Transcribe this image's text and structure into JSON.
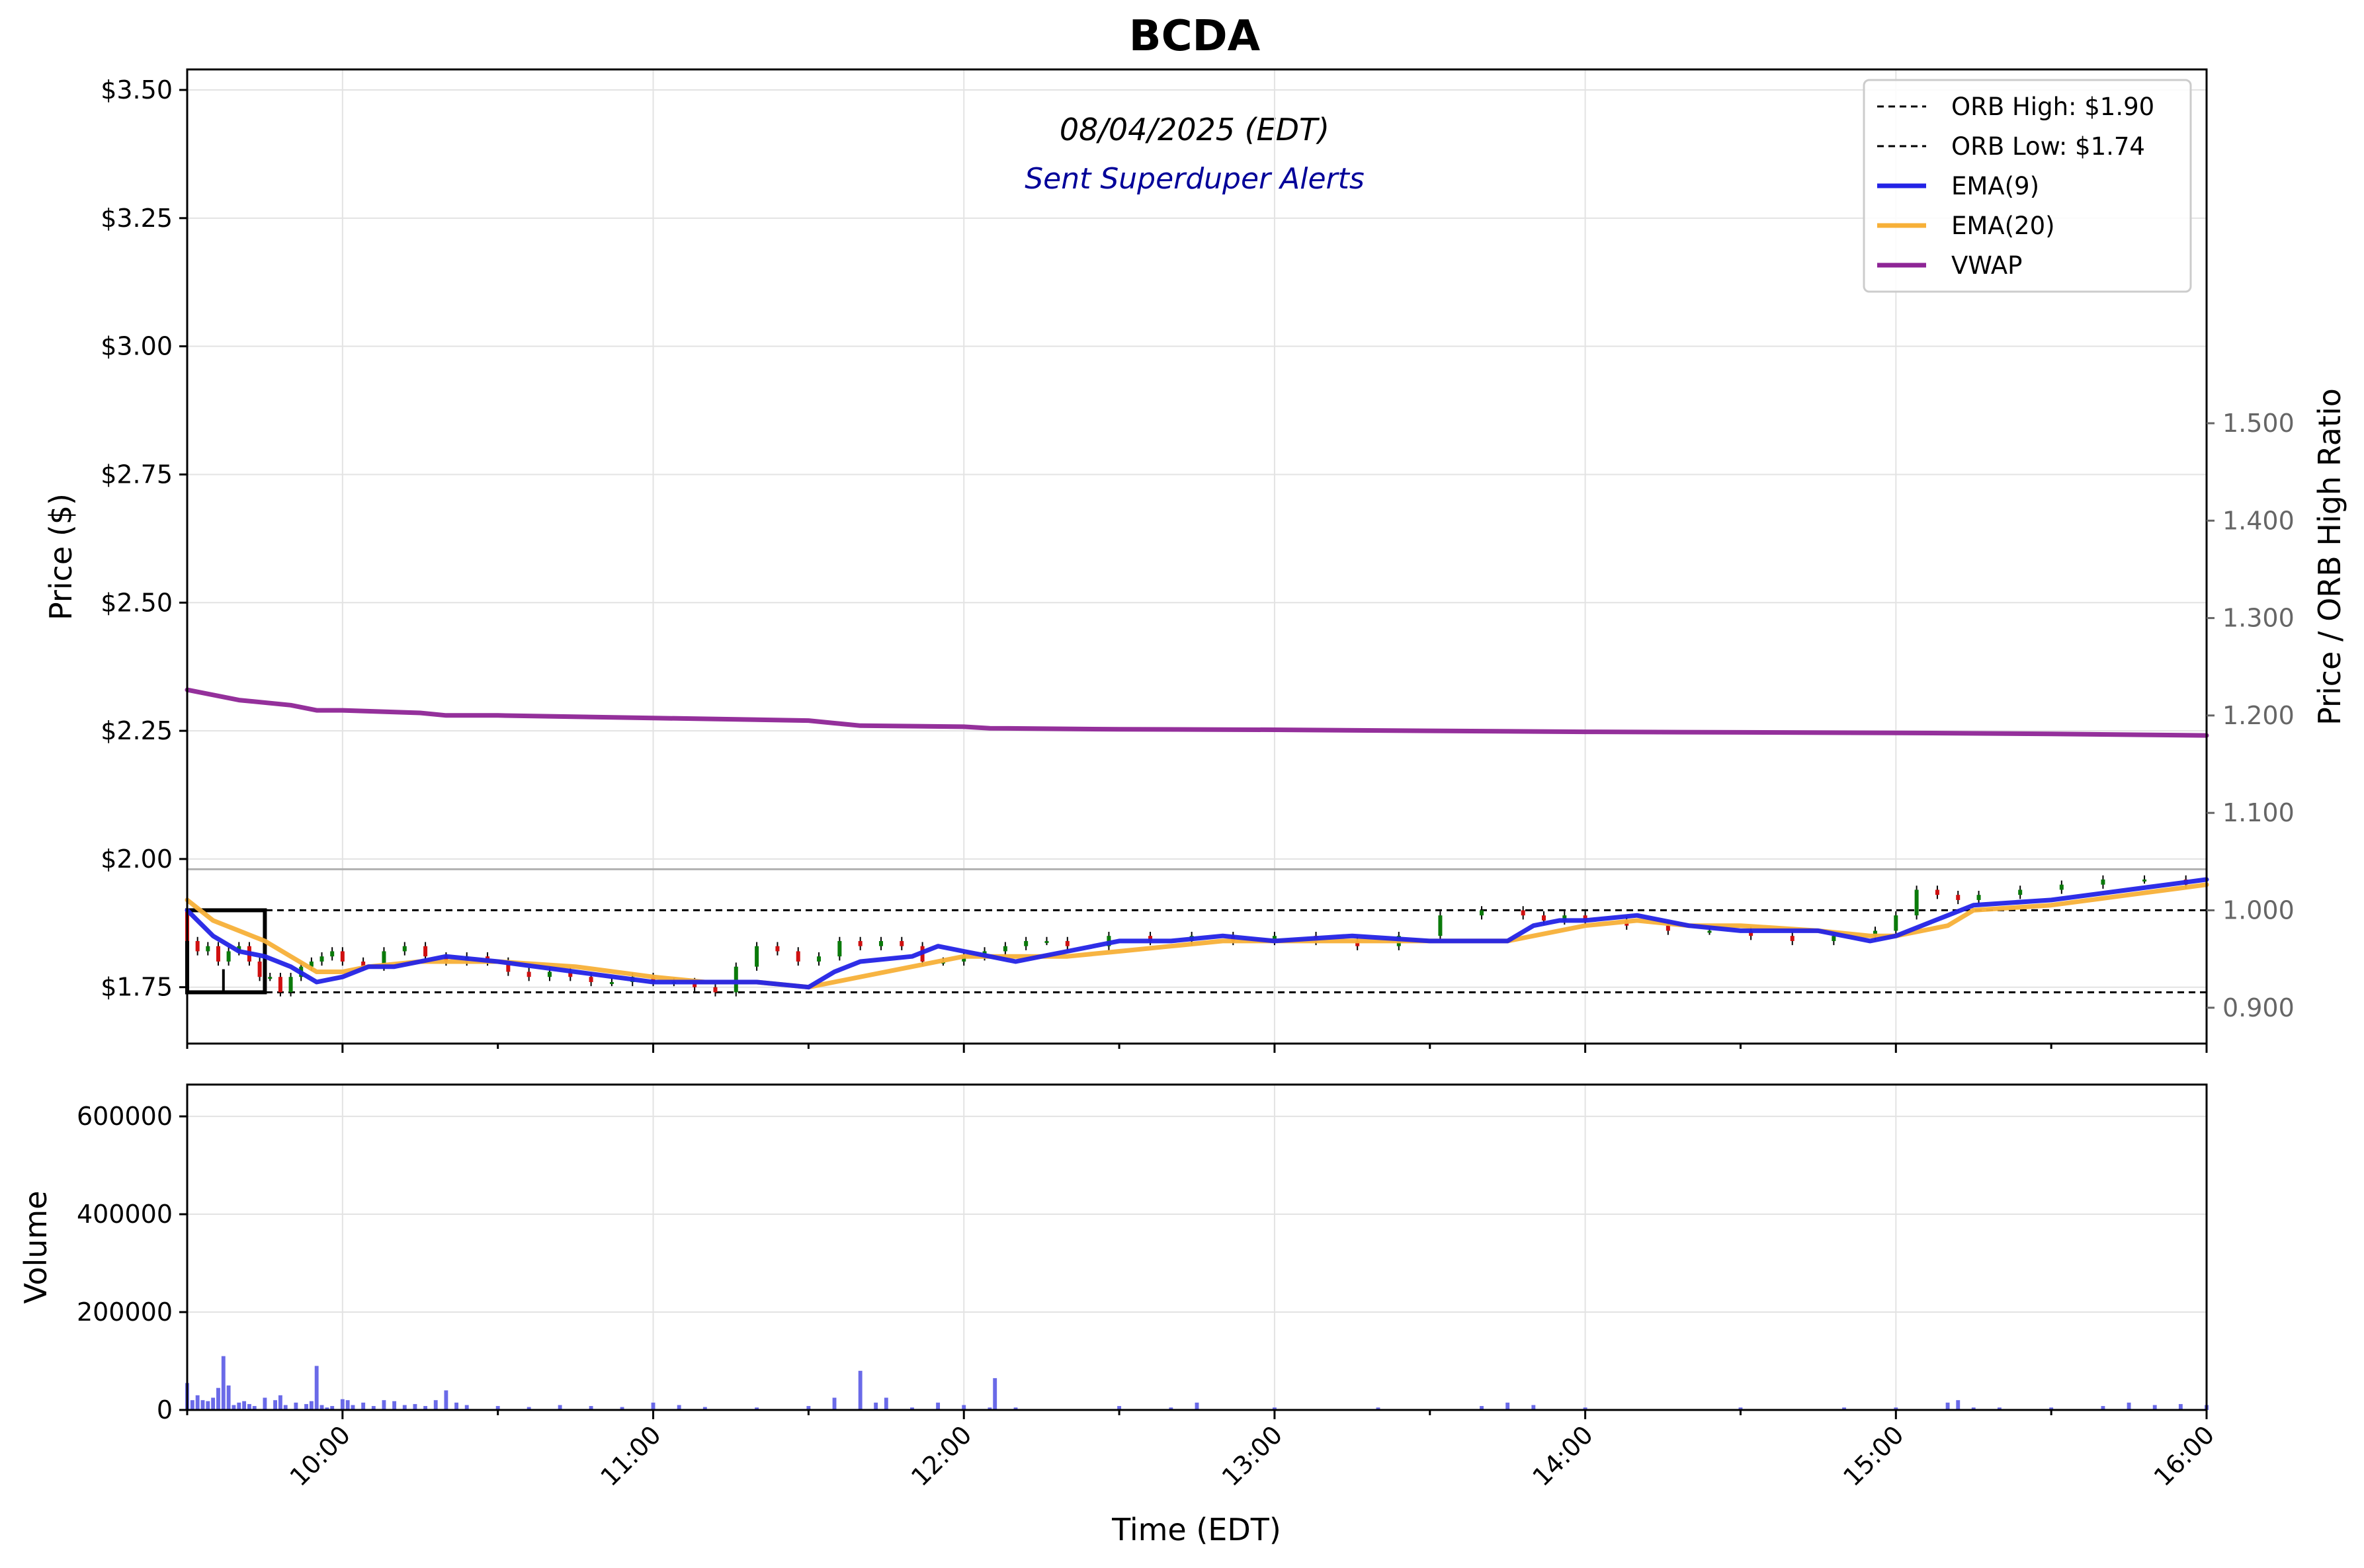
{
  "title": "BCDA",
  "subtitle": "08/04/2025 (EDT)",
  "alert_text": "Sent Superduper Alerts",
  "colors": {
    "ema9": "#2323e6",
    "ema20": "#f7b038",
    "vwap": "#8e2596",
    "up_candle": "#0a7a0a",
    "down_candle": "#d01010",
    "volume": "#5a5ae6",
    "alert_text": "#000099",
    "right_axis": "#666666"
  },
  "chart_data": [
    {
      "type": "line",
      "panel": "price",
      "title": "BCDA",
      "xlabel": "",
      "ylabel": "Price ($)",
      "y2label": "Price / ORB High Ratio",
      "xlim": [
        "09:30",
        "16:00"
      ],
      "ylim": [
        1.64,
        3.54
      ],
      "y2lim": [
        0.8632,
        1.8632
      ],
      "yticks": [
        1.75,
        2.0,
        2.25,
        2.5,
        2.75,
        3.0,
        3.25,
        3.5
      ],
      "ytick_labels": [
        "$1.75",
        "$2.00",
        "$2.25",
        "$2.50",
        "$2.75",
        "$3.00",
        "$3.25",
        "$3.50"
      ],
      "y2ticks": [
        0.9,
        1.0,
        1.1,
        1.2,
        1.3,
        1.4,
        1.5
      ],
      "y2tick_labels": [
        "0.900",
        "1.000",
        "1.100",
        "1.200",
        "1.300",
        "1.400",
        "1.500"
      ],
      "grid": true,
      "legend_position": "top-right",
      "legend": [
        {
          "label": "ORB High: $1.90",
          "style": "dashed",
          "color": "#000000"
        },
        {
          "label": "ORB Low: $1.74",
          "style": "dashed",
          "color": "#000000"
        },
        {
          "label": "EMA(9)",
          "style": "solid",
          "color": "#2323e6"
        },
        {
          "label": "EMA(20)",
          "style": "solid",
          "color": "#f7b038"
        },
        {
          "label": "VWAP",
          "style": "solid",
          "color": "#8e2596"
        }
      ],
      "orb_high": 1.9,
      "orb_low": 1.74,
      "ratio_one_level": 1.98,
      "orb_box": {
        "start": "09:30",
        "end": "09:45",
        "low": 1.74,
        "high": 1.9
      },
      "series": [
        {
          "name": "EMA(9)",
          "x": [
            "09:30",
            "09:35",
            "09:40",
            "09:45",
            "09:50",
            "09:55",
            "10:00",
            "10:05",
            "10:10",
            "10:15",
            "10:20",
            "10:30",
            "10:45",
            "11:00",
            "11:10",
            "11:20",
            "11:30",
            "11:35",
            "11:40",
            "11:50",
            "11:55",
            "12:00",
            "12:05",
            "12:10",
            "12:15",
            "12:20",
            "12:30",
            "12:40",
            "12:50",
            "13:00",
            "13:15",
            "13:30",
            "13:45",
            "13:50",
            "13:55",
            "14:00",
            "14:10",
            "14:20",
            "14:30",
            "14:45",
            "14:55",
            "15:00",
            "15:10",
            "15:15",
            "15:30",
            "15:45",
            "16:00"
          ],
          "values": [
            1.9,
            1.85,
            1.82,
            1.81,
            1.79,
            1.76,
            1.77,
            1.79,
            1.79,
            1.8,
            1.81,
            1.8,
            1.78,
            1.76,
            1.76,
            1.76,
            1.75,
            1.78,
            1.8,
            1.81,
            1.83,
            1.82,
            1.81,
            1.8,
            1.81,
            1.82,
            1.84,
            1.84,
            1.85,
            1.84,
            1.85,
            1.84,
            1.84,
            1.87,
            1.88,
            1.88,
            1.89,
            1.87,
            1.86,
            1.86,
            1.84,
            1.85,
            1.89,
            1.91,
            1.92,
            1.94,
            1.96
          ]
        },
        {
          "name": "EMA(20)",
          "x": [
            "09:30",
            "09:35",
            "09:40",
            "09:45",
            "09:50",
            "09:55",
            "10:00",
            "10:05",
            "10:15",
            "10:30",
            "10:45",
            "11:00",
            "11:10",
            "11:20",
            "11:30",
            "11:40",
            "11:50",
            "12:00",
            "12:10",
            "12:20",
            "12:30",
            "12:40",
            "12:50",
            "13:00",
            "13:15",
            "13:30",
            "13:45",
            "13:55",
            "14:00",
            "14:10",
            "14:20",
            "14:30",
            "14:45",
            "14:55",
            "15:00",
            "15:10",
            "15:15",
            "15:30",
            "15:45",
            "16:00"
          ],
          "values": [
            1.92,
            1.88,
            1.86,
            1.84,
            1.81,
            1.78,
            1.78,
            1.79,
            1.8,
            1.8,
            1.79,
            1.77,
            1.76,
            1.76,
            1.75,
            1.77,
            1.79,
            1.81,
            1.81,
            1.81,
            1.82,
            1.83,
            1.84,
            1.84,
            1.84,
            1.84,
            1.84,
            1.86,
            1.87,
            1.88,
            1.87,
            1.87,
            1.86,
            1.85,
            1.85,
            1.87,
            1.9,
            1.91,
            1.93,
            1.95
          ]
        },
        {
          "name": "VWAP",
          "x": [
            "09:30",
            "09:35",
            "09:40",
            "09:50",
            "09:55",
            "10:00",
            "10:15",
            "10:20",
            "10:30",
            "11:00",
            "11:30",
            "11:35",
            "11:40",
            "12:00",
            "12:05",
            "12:30",
            "13:00",
            "13:30",
            "14:00",
            "14:30",
            "15:00",
            "15:30",
            "16:00"
          ],
          "values": [
            2.33,
            2.32,
            2.31,
            2.3,
            2.29,
            2.29,
            2.285,
            2.28,
            2.28,
            2.275,
            2.27,
            2.265,
            2.26,
            2.258,
            2.255,
            2.253,
            2.252,
            2.25,
            2.248,
            2.247,
            2.246,
            2.244,
            2.241
          ]
        }
      ],
      "candles": {
        "x": [
          "09:30",
          "09:32",
          "09:34",
          "09:36",
          "09:38",
          "09:40",
          "09:42",
          "09:44",
          "09:46",
          "09:48",
          "09:50",
          "09:52",
          "09:54",
          "09:56",
          "09:58",
          "10:00",
          "10:04",
          "10:08",
          "10:12",
          "10:16",
          "10:20",
          "10:24",
          "10:28",
          "10:32",
          "10:36",
          "10:40",
          "10:44",
          "10:48",
          "10:52",
          "10:56",
          "11:00",
          "11:04",
          "11:08",
          "11:12",
          "11:16",
          "11:20",
          "11:24",
          "11:28",
          "11:32",
          "11:36",
          "11:40",
          "11:44",
          "11:48",
          "11:52",
          "11:56",
          "12:00",
          "12:04",
          "12:08",
          "12:12",
          "12:16",
          "12:20",
          "12:28",
          "12:36",
          "12:44",
          "12:52",
          "13:00",
          "13:08",
          "13:16",
          "13:24",
          "13:32",
          "13:40",
          "13:48",
          "13:52",
          "13:56",
          "14:00",
          "14:08",
          "14:16",
          "14:24",
          "14:32",
          "14:40",
          "14:48",
          "14:56",
          "15:00",
          "15:04",
          "15:08",
          "15:12",
          "15:16",
          "15:24",
          "15:32",
          "15:40",
          "15:48",
          "15:56"
        ],
        "open": [
          1.9,
          1.84,
          1.82,
          1.83,
          1.8,
          1.82,
          1.83,
          1.8,
          1.77,
          1.77,
          1.74,
          1.77,
          1.79,
          1.8,
          1.81,
          1.82,
          1.8,
          1.79,
          1.82,
          1.83,
          1.81,
          1.8,
          1.81,
          1.8,
          1.78,
          1.77,
          1.78,
          1.77,
          1.76,
          1.76,
          1.77,
          1.76,
          1.76,
          1.75,
          1.74,
          1.79,
          1.83,
          1.82,
          1.8,
          1.81,
          1.84,
          1.83,
          1.84,
          1.83,
          1.8,
          1.8,
          1.81,
          1.82,
          1.83,
          1.84,
          1.84,
          1.83,
          1.85,
          1.84,
          1.85,
          1.84,
          1.85,
          1.84,
          1.83,
          1.85,
          1.89,
          1.9,
          1.89,
          1.88,
          1.89,
          1.88,
          1.87,
          1.86,
          1.86,
          1.85,
          1.84,
          1.85,
          1.86,
          1.89,
          1.94,
          1.93,
          1.92,
          1.93,
          1.94,
          1.95,
          1.96,
          1.96
        ],
        "close": [
          1.84,
          1.82,
          1.83,
          1.8,
          1.82,
          1.83,
          1.8,
          1.77,
          1.77,
          1.74,
          1.77,
          1.79,
          1.8,
          1.81,
          1.82,
          1.8,
          1.79,
          1.82,
          1.83,
          1.81,
          1.8,
          1.81,
          1.8,
          1.78,
          1.77,
          1.78,
          1.77,
          1.76,
          1.76,
          1.77,
          1.76,
          1.76,
          1.75,
          1.74,
          1.79,
          1.83,
          1.82,
          1.8,
          1.81,
          1.84,
          1.83,
          1.84,
          1.83,
          1.8,
          1.8,
          1.81,
          1.82,
          1.83,
          1.84,
          1.84,
          1.83,
          1.85,
          1.84,
          1.85,
          1.84,
          1.85,
          1.84,
          1.83,
          1.85,
          1.89,
          1.9,
          1.89,
          1.88,
          1.89,
          1.88,
          1.87,
          1.86,
          1.86,
          1.85,
          1.84,
          1.85,
          1.86,
          1.89,
          1.94,
          1.93,
          1.92,
          1.93,
          1.94,
          1.95,
          1.96,
          1.96,
          1.95
        ]
      }
    },
    {
      "type": "bar",
      "panel": "volume",
      "xlabel": "Time (EDT)",
      "ylabel": "Volume",
      "xlim": [
        "09:30",
        "16:00"
      ],
      "ylim": [
        0,
        665000
      ],
      "yticks": [
        0,
        200000,
        400000,
        600000
      ],
      "ytick_labels": [
        "0",
        "200000",
        "400000",
        "600000"
      ],
      "xticks": [
        "10:00",
        "11:00",
        "12:00",
        "13:00",
        "14:00",
        "15:00",
        "16:00"
      ],
      "grid": true,
      "bar_width_minutes": 0.75,
      "series": [
        {
          "x": [
            "09:30",
            "09:31",
            "09:32",
            "09:33",
            "09:34",
            "09:35",
            "09:36",
            "09:37",
            "09:38",
            "09:39",
            "09:40",
            "09:41",
            "09:42",
            "09:43",
            "09:45",
            "09:47",
            "09:48",
            "09:49",
            "09:51",
            "09:53",
            "09:54",
            "09:55",
            "09:56",
            "09:57",
            "09:58",
            "10:00",
            "10:01",
            "10:02",
            "10:04",
            "10:06",
            "10:08",
            "10:10",
            "10:12",
            "10:14",
            "10:16",
            "10:18",
            "10:20",
            "10:22",
            "10:24",
            "10:30",
            "10:36",
            "10:42",
            "10:48",
            "10:54",
            "11:00",
            "11:05",
            "11:10",
            "11:20",
            "11:30",
            "11:35",
            "11:40",
            "11:43",
            "11:45",
            "11:50",
            "11:55",
            "12:00",
            "12:05",
            "12:06",
            "12:10",
            "12:30",
            "12:40",
            "12:45",
            "13:00",
            "13:20",
            "13:40",
            "13:45",
            "13:50",
            "14:00",
            "14:30",
            "14:50",
            "15:00",
            "15:10",
            "15:12",
            "15:15",
            "15:20",
            "15:30",
            "15:40",
            "15:45",
            "15:50",
            "15:55",
            "16:00"
          ],
          "values": [
            55000,
            20000,
            30000,
            20000,
            18000,
            25000,
            45000,
            110000,
            50000,
            10000,
            15000,
            18000,
            12000,
            8000,
            25000,
            20000,
            30000,
            10000,
            15000,
            12000,
            18000,
            90000,
            10000,
            5000,
            8000,
            22000,
            20000,
            10000,
            15000,
            8000,
            20000,
            18000,
            10000,
            12000,
            8000,
            20000,
            40000,
            15000,
            10000,
            8000,
            6000,
            10000,
            8000,
            6000,
            15000,
            10000,
            6000,
            5000,
            8000,
            25000,
            80000,
            15000,
            25000,
            5000,
            15000,
            10000,
            5000,
            65000,
            5000,
            8000,
            5000,
            15000,
            5000,
            5000,
            8000,
            15000,
            10000,
            5000,
            5000,
            5000,
            5000,
            15000,
            20000,
            5000,
            5000,
            5000,
            8000,
            15000,
            10000,
            12000,
            10000
          ]
        }
      ]
    }
  ]
}
